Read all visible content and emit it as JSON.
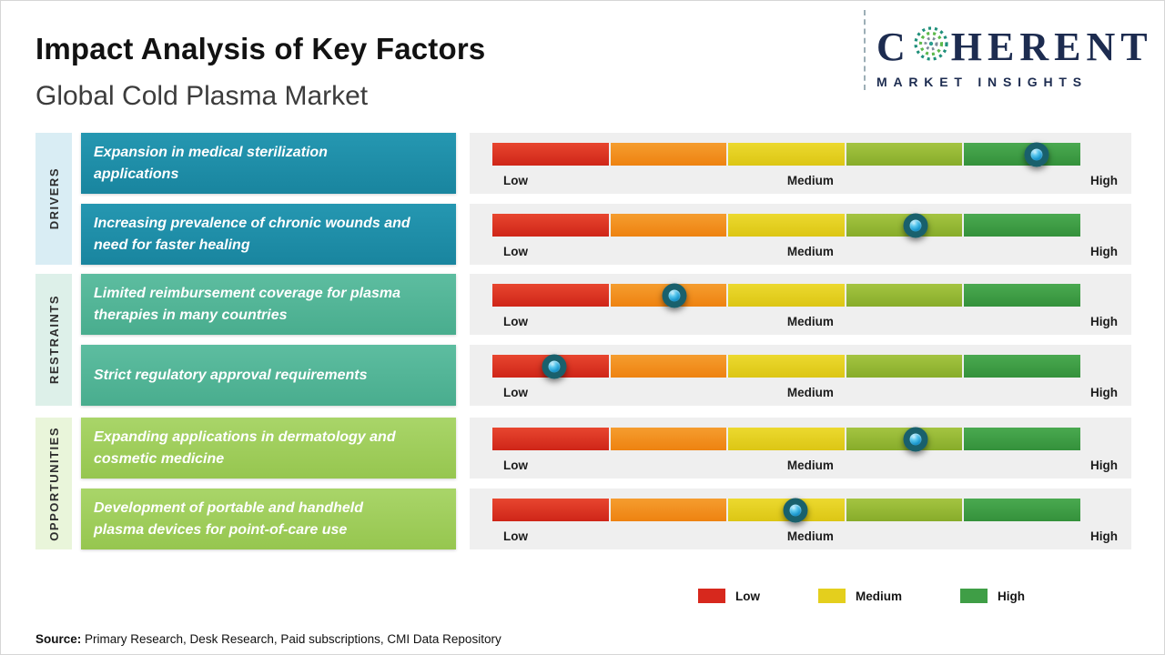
{
  "header": {
    "title": "Impact Analysis of Key Factors",
    "subtitle": "Global Cold Plasma Market"
  },
  "logo": {
    "name_start": "C",
    "name_end": "HERENT",
    "tagline": "MARKET INSIGHTS"
  },
  "groups": [
    {
      "label": "DRIVERS"
    },
    {
      "label": "RESTRAINTS"
    },
    {
      "label": "OPPORTUNITIES"
    }
  ],
  "scale": {
    "low": "Low",
    "medium": "Medium",
    "high": "High"
  },
  "legend": {
    "items": [
      {
        "label": "Low",
        "color": "#d7281d"
      },
      {
        "label": "Medium",
        "color": "#e4cf1d"
      },
      {
        "label": "High",
        "color": "#3f9e46"
      }
    ]
  },
  "source": {
    "prefix": "Source:",
    "text": "Primary Research, Desk Research, Paid subscriptions, CMI Data Repository"
  },
  "chart_data": {
    "type": "table",
    "title": "Impact Analysis of Key Factors",
    "subtitle": "Global Cold Plasma Market",
    "scale": [
      "Low",
      "Medium",
      "High"
    ],
    "scale_range_pct": [
      0,
      100
    ],
    "segment_colors": [
      "#d7281d",
      "#ee8210",
      "#dcc614",
      "#87ac2a",
      "#3f9e46"
    ],
    "rows": [
      {
        "category": "Drivers",
        "factor": "Expansion in medical sterilization applications",
        "impact": "High",
        "position_pct": 92.5
      },
      {
        "category": "Drivers",
        "factor": "Increasing prevalence of chronic wounds and need for faster healing",
        "impact": "Medium-High",
        "position_pct": 72
      },
      {
        "category": "Restraints",
        "factor": "Limited reimbursement coverage for plasma therapies in many countries",
        "impact": "Low-Medium",
        "position_pct": 31
      },
      {
        "category": "Restraints",
        "factor": "Strict regulatory approval requirements",
        "impact": "Low",
        "position_pct": 10.5
      },
      {
        "category": "Opportunities",
        "factor": "Expanding applications in dermatology and cosmetic medicine",
        "impact": "Medium-High",
        "position_pct": 72
      },
      {
        "category": "Opportunities",
        "factor": "Development of portable and handheld plasma devices for point-of-care use",
        "impact": "Medium",
        "position_pct": 51.5
      }
    ],
    "legend": [
      "Low",
      "Medium",
      "High"
    ]
  }
}
